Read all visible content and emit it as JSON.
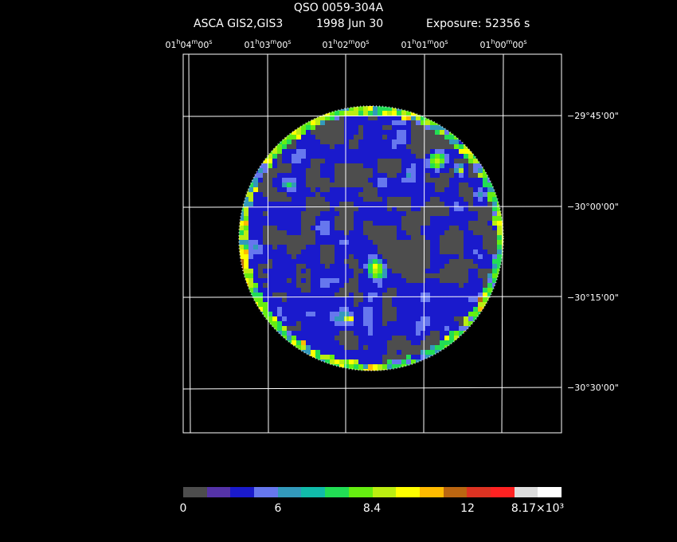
{
  "header": {
    "title": "QSO 0059-304A",
    "instrument": "ASCA GIS2,GIS3",
    "date": "1998 Jun 30",
    "exposure": "Exposure: 52356 s"
  },
  "ra_labels": [
    {
      "h": "01",
      "m": "04",
      "s": "00"
    },
    {
      "h": "01",
      "m": "03",
      "s": "00"
    },
    {
      "h": "01",
      "m": "02",
      "s": "00"
    },
    {
      "h": "01",
      "m": "01",
      "s": "00"
    },
    {
      "h": "01",
      "m": "00",
      "s": "00"
    }
  ],
  "dec_labels": [
    "−29°45'00\"",
    "−30°00'00\"",
    "−30°15'00\"",
    "−30°30'00\""
  ],
  "colorbar": {
    "colors": [
      "#4d4d4d",
      "#5533a8",
      "#1a1acc",
      "#6677ee",
      "#3399bb",
      "#11bbaa",
      "#22dd55",
      "#66ee11",
      "#bbee11",
      "#ffff00",
      "#ffbb00",
      "#bb6611",
      "#dd3322",
      "#ff2222",
      "#dddddd",
      "#ffffff"
    ],
    "tick_labels": [
      "0",
      "6",
      "8.4",
      "12",
      "8.17×10³"
    ]
  }
}
